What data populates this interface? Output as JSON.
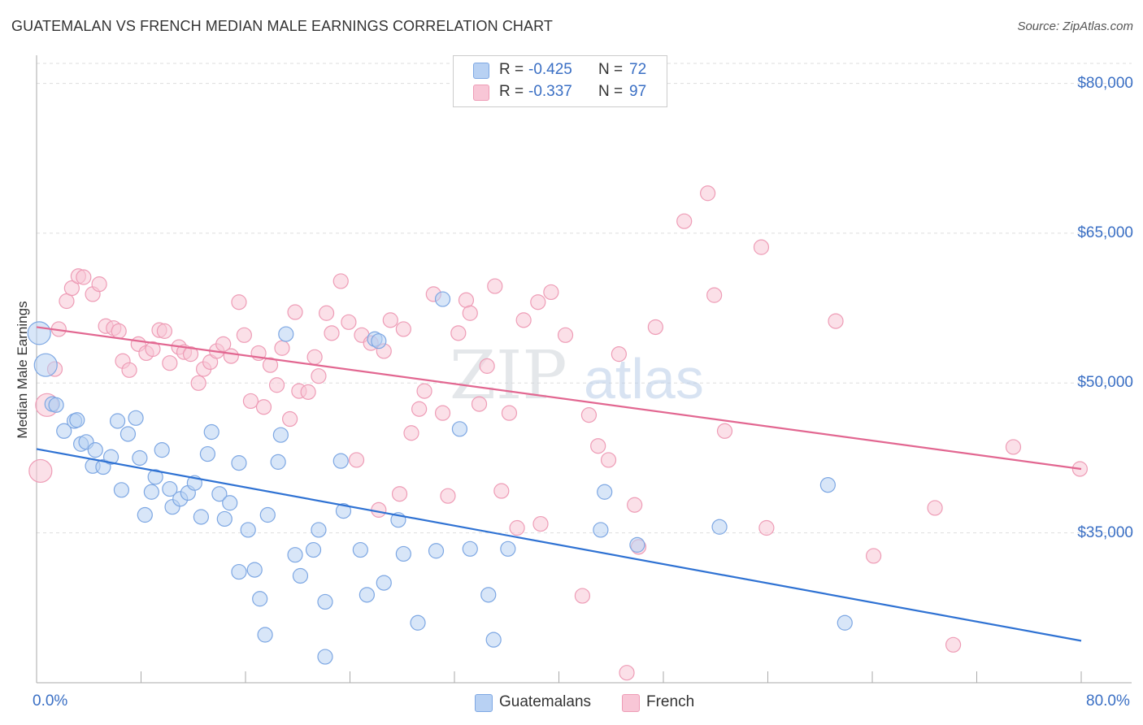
{
  "title": "GUATEMALAN VS FRENCH MEDIAN MALE EARNINGS CORRELATION CHART",
  "source": "Source: ZipAtlas.com",
  "watermark": {
    "zip": "ZIP",
    "atlas": "atlas"
  },
  "colors": {
    "blue_fill": "#b8d1f3",
    "blue_stroke": "#7da7e3",
    "blue_line": "#2f72d3",
    "pink_fill": "#f8c6d6",
    "pink_stroke": "#ee9cb6",
    "pink_line": "#e26791",
    "tick_text": "#3a6fc4",
    "grid": "#dddddd"
  },
  "legend_top": [
    {
      "r_label": "R =",
      "r_value": "-0.425",
      "n_label": "N =",
      "n_value": "72",
      "series": "Guatemalans"
    },
    {
      "r_label": "R =",
      "r_value": "-0.337",
      "n_label": "N =",
      "n_value": "97",
      "series": "French"
    }
  ],
  "legend_bottom": [
    "Guatemalans",
    "French"
  ],
  "chart_data": {
    "type": "scatter",
    "xlabel": "",
    "ylabel": "Median Male Earnings",
    "xlim": [
      0,
      80
    ],
    "ylim": [
      20000,
      82000
    ],
    "x_tick_labels": [
      "0.0%",
      "80.0%"
    ],
    "y_ticks": [
      80000,
      65000,
      50000,
      35000
    ],
    "y_tick_labels": [
      "$80,000",
      "$65,000",
      "$50,000",
      "$35,000"
    ],
    "series": [
      {
        "name": "Guatemalans",
        "r": -0.425,
        "n": 72,
        "trend": {
          "x": [
            0,
            80
          ],
          "y": [
            43400,
            24200
          ]
        },
        "points": [
          [
            0.2,
            55000
          ],
          [
            0.7,
            51800
          ],
          [
            1.2,
            47900
          ],
          [
            1.5,
            47800
          ],
          [
            2.1,
            45200
          ],
          [
            2.9,
            46200
          ],
          [
            3.1,
            46300
          ],
          [
            3.4,
            43900
          ],
          [
            3.8,
            44100
          ],
          [
            4.3,
            41700
          ],
          [
            4.5,
            43300
          ],
          [
            5.1,
            41600
          ],
          [
            5.7,
            42600
          ],
          [
            6.2,
            46200
          ],
          [
            6.5,
            39300
          ],
          [
            7.0,
            44900
          ],
          [
            7.6,
            46500
          ],
          [
            7.9,
            42500
          ],
          [
            8.3,
            36800
          ],
          [
            8.8,
            39100
          ],
          [
            9.1,
            40600
          ],
          [
            9.6,
            43300
          ],
          [
            10.2,
            39400
          ],
          [
            10.4,
            37600
          ],
          [
            11.0,
            38400
          ],
          [
            11.6,
            39000
          ],
          [
            12.1,
            40000
          ],
          [
            12.6,
            36600
          ],
          [
            13.1,
            42900
          ],
          [
            13.4,
            45100
          ],
          [
            14.0,
            38900
          ],
          [
            14.4,
            36400
          ],
          [
            14.8,
            38000
          ],
          [
            15.5,
            31100
          ],
          [
            15.5,
            42000
          ],
          [
            16.2,
            35300
          ],
          [
            16.7,
            31300
          ],
          [
            17.1,
            28400
          ],
          [
            17.5,
            24800
          ],
          [
            17.7,
            36800
          ],
          [
            18.5,
            42100
          ],
          [
            18.7,
            44800
          ],
          [
            19.1,
            54900
          ],
          [
            19.8,
            32800
          ],
          [
            20.2,
            30700
          ],
          [
            21.2,
            33300
          ],
          [
            21.6,
            35300
          ],
          [
            22.1,
            28100
          ],
          [
            22.1,
            22600
          ],
          [
            23.3,
            42200
          ],
          [
            23.5,
            37200
          ],
          [
            24.8,
            33300
          ],
          [
            25.3,
            28800
          ],
          [
            25.9,
            54400
          ],
          [
            26.2,
            54200
          ],
          [
            26.6,
            30000
          ],
          [
            27.7,
            36300
          ],
          [
            28.1,
            32900
          ],
          [
            29.2,
            26000
          ],
          [
            30.6,
            33200
          ],
          [
            31.1,
            58400
          ],
          [
            32.4,
            45400
          ],
          [
            33.2,
            33400
          ],
          [
            34.6,
            28800
          ],
          [
            35.0,
            24300
          ],
          [
            36.1,
            33400
          ],
          [
            43.2,
            35300
          ],
          [
            43.5,
            39100
          ],
          [
            46.0,
            33800
          ],
          [
            52.3,
            35600
          ],
          [
            60.6,
            39800
          ],
          [
            61.9,
            26000
          ]
        ]
      },
      {
        "name": "French",
        "r": -0.337,
        "n": 97,
        "trend": {
          "x": [
            0,
            80
          ],
          "y": [
            55600,
            41400
          ]
        },
        "points": [
          [
            0.3,
            41200
          ],
          [
            0.8,
            47800
          ],
          [
            1.4,
            51400
          ],
          [
            1.7,
            55400
          ],
          [
            2.3,
            58200
          ],
          [
            2.7,
            59500
          ],
          [
            3.2,
            60700
          ],
          [
            3.6,
            60600
          ],
          [
            4.3,
            58900
          ],
          [
            4.8,
            59900
          ],
          [
            5.3,
            55700
          ],
          [
            5.9,
            55500
          ],
          [
            6.3,
            55200
          ],
          [
            6.6,
            52200
          ],
          [
            7.1,
            51300
          ],
          [
            7.8,
            53900
          ],
          [
            8.4,
            53000
          ],
          [
            8.9,
            53400
          ],
          [
            9.4,
            55300
          ],
          [
            9.8,
            55200
          ],
          [
            10.2,
            52000
          ],
          [
            10.9,
            53600
          ],
          [
            11.3,
            53100
          ],
          [
            11.8,
            52900
          ],
          [
            12.4,
            50000
          ],
          [
            12.8,
            51400
          ],
          [
            13.3,
            52100
          ],
          [
            13.8,
            53200
          ],
          [
            14.3,
            53900
          ],
          [
            14.9,
            52700
          ],
          [
            15.5,
            58100
          ],
          [
            15.9,
            54800
          ],
          [
            16.4,
            48200
          ],
          [
            17.0,
            53000
          ],
          [
            17.4,
            47600
          ],
          [
            17.9,
            51800
          ],
          [
            18.4,
            49800
          ],
          [
            18.8,
            53500
          ],
          [
            19.4,
            46400
          ],
          [
            19.8,
            57100
          ],
          [
            20.1,
            49200
          ],
          [
            20.8,
            49100
          ],
          [
            21.3,
            52600
          ],
          [
            21.6,
            50700
          ],
          [
            22.2,
            57000
          ],
          [
            22.6,
            55000
          ],
          [
            23.3,
            60200
          ],
          [
            23.9,
            56100
          ],
          [
            24.5,
            42300
          ],
          [
            24.9,
            54800
          ],
          [
            25.6,
            54000
          ],
          [
            26.2,
            37300
          ],
          [
            26.6,
            53200
          ],
          [
            27.1,
            56300
          ],
          [
            27.8,
            38900
          ],
          [
            28.1,
            55400
          ],
          [
            28.7,
            45000
          ],
          [
            29.3,
            47400
          ],
          [
            29.7,
            49200
          ],
          [
            30.4,
            58900
          ],
          [
            31.1,
            47000
          ],
          [
            31.5,
            38700
          ],
          [
            32.3,
            55000
          ],
          [
            32.9,
            58300
          ],
          [
            33.2,
            57000
          ],
          [
            33.9,
            47900
          ],
          [
            34.5,
            51700
          ],
          [
            35.1,
            59700
          ],
          [
            35.6,
            39200
          ],
          [
            36.2,
            47000
          ],
          [
            36.8,
            35500
          ],
          [
            37.3,
            56300
          ],
          [
            38.4,
            58100
          ],
          [
            38.6,
            35900
          ],
          [
            39.4,
            59100
          ],
          [
            40.5,
            54800
          ],
          [
            41.8,
            28700
          ],
          [
            42.3,
            46800
          ],
          [
            43.0,
            43700
          ],
          [
            43.8,
            42300
          ],
          [
            44.6,
            52900
          ],
          [
            45.2,
            21000
          ],
          [
            45.8,
            37800
          ],
          [
            46.1,
            33600
          ],
          [
            47.4,
            55600
          ],
          [
            49.6,
            66200
          ],
          [
            51.4,
            69000
          ],
          [
            51.9,
            58800
          ],
          [
            52.7,
            45200
          ],
          [
            55.5,
            63600
          ],
          [
            55.9,
            35500
          ],
          [
            61.2,
            56200
          ],
          [
            64.1,
            32700
          ],
          [
            68.8,
            37500
          ],
          [
            70.2,
            23800
          ],
          [
            74.8,
            43600
          ],
          [
            79.9,
            41400
          ]
        ]
      }
    ]
  }
}
